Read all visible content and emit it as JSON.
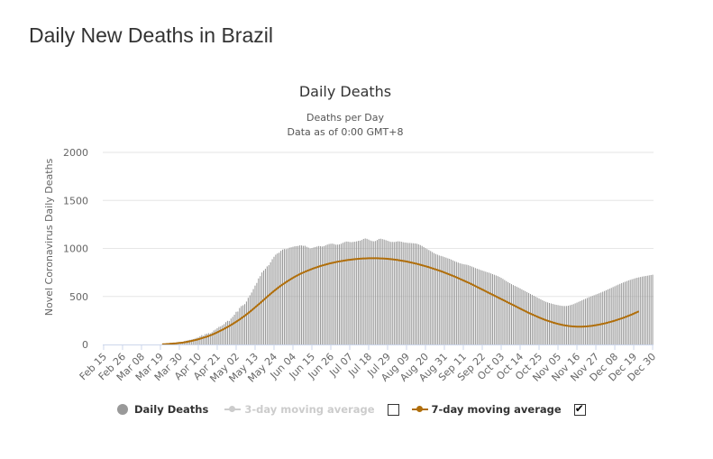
{
  "page": {
    "title": "Daily New Deaths in Brazil"
  },
  "chart_data": {
    "type": "bar",
    "title": "Daily Deaths",
    "subtitle_lines": [
      "Deaths per Day",
      "Data as of 0:00 GMT+8"
    ],
    "ylabel": "Novel Coronavirus Daily Deaths",
    "xlabel": "",
    "ylim": [
      0,
      2000
    ],
    "yticks": [
      0,
      500,
      1000,
      1500,
      2000
    ],
    "date_start": "2020-02-15",
    "date_end": "2020-12-30",
    "x_tick_labels": [
      "Feb 15",
      "Feb 26",
      "Mar 08",
      "Mar 19",
      "Mar 30",
      "Apr 10",
      "Apr 21",
      "May 02",
      "May 13",
      "May 24",
      "Jun 04",
      "Jun 15",
      "Jun 26",
      "Jul 07",
      "Jul 18",
      "Jul 29",
      "Aug 09",
      "Aug 20",
      "Aug 31",
      "Sep 11",
      "Sep 22",
      "Oct 03",
      "Oct 14",
      "Oct 25",
      "Nov 05",
      "Nov 16",
      "Nov 27",
      "Dec 08",
      "Dec 19",
      "Dec 30"
    ],
    "grid": true,
    "legend_position": "bottom",
    "colors": {
      "bars": "#999999",
      "avg3": "#cccccc",
      "avg7": "#b06e0a",
      "grid": "#e6e6e6",
      "axis": "#ccd6eb"
    },
    "series": [
      {
        "name": "Daily Deaths",
        "kind": "bar",
        "visible": true,
        "values": [
          0,
          0,
          0,
          0,
          0,
          0,
          0,
          0,
          0,
          0,
          0,
          0,
          0,
          0,
          0,
          0,
          0,
          0,
          0,
          0,
          0,
          0,
          0,
          0,
          0,
          0,
          0,
          0,
          0,
          0,
          0,
          0,
          0,
          0,
          1,
          2,
          3,
          7,
          7,
          9,
          12,
          11,
          14,
          19,
          21,
          20,
          23,
          36,
          40,
          44,
          48,
          51,
          56,
          61,
          69,
          73,
          85,
          97,
          91,
          108,
          112,
          118,
          116,
          128,
          146,
          155,
          170,
          183,
          188,
          200,
          212,
          232,
          246,
          245,
          270,
          288,
          310,
          340,
          343,
          380,
          400,
          408,
          420,
          447,
          486,
          512,
          541,
          577,
          613,
          641,
          688,
          712,
          750,
          770,
          788,
          813,
          826,
          856,
          888,
          913,
          935,
          948,
          956,
          975,
          988,
          994,
          993,
          998,
          1008,
          1012,
          1017,
          1022,
          1024,
          1026,
          1032,
          1031,
          1027,
          1028,
          1017,
          1009,
          1000,
          1004,
          1010,
          1015,
          1020,
          1025,
          1023,
          1020,
          1024,
          1032,
          1040,
          1046,
          1049,
          1050,
          1045,
          1039,
          1040,
          1042,
          1049,
          1058,
          1066,
          1072,
          1071,
          1067,
          1065,
          1068,
          1070,
          1074,
          1079,
          1081,
          1088,
          1099,
          1104,
          1100,
          1092,
          1083,
          1077,
          1074,
          1078,
          1088,
          1099,
          1101,
          1097,
          1092,
          1086,
          1080,
          1073,
          1068,
          1068,
          1067,
          1071,
          1074,
          1073,
          1070,
          1065,
          1062,
          1060,
          1057,
          1057,
          1055,
          1054,
          1052,
          1049,
          1043,
          1035,
          1026,
          1015,
          1003,
          993,
          983,
          973,
          962,
          951,
          942,
          935,
          927,
          922,
          917,
          910,
          904,
          897,
          892,
          884,
          875,
          867,
          860,
          853,
          846,
          841,
          836,
          833,
          830,
          825,
          818,
          811,
          804,
          796,
          789,
          783,
          776,
          770,
          764,
          758,
          752,
          747,
          740,
          733,
          726,
          719,
          712,
          703,
          694,
          683,
          671,
          660,
          649,
          639,
          628,
          619,
          610,
          602,
          593,
          584,
          574,
          564,
          555,
          545,
          536,
          526,
          517,
          507,
          498,
          488,
          479,
          470,
          461,
          452,
          444,
          438,
          432,
          427,
          422,
          417,
          413,
          410,
          406,
          403,
          401,
          400,
          401,
          404,
          409,
          414,
          420,
          428,
          436,
          444,
          452,
          460,
          468,
          476,
          484,
          492,
          499,
          506,
          513,
          520,
          527,
          534,
          541,
          549,
          557,
          565,
          573,
          581,
          589,
          598,
          606,
          615,
          623,
          631,
          639,
          646,
          653,
          660,
          667,
          673,
          679,
          684,
          690,
          695,
          699,
          703,
          707,
          710,
          713,
          716,
          720,
          723,
          726,
          729
        ]
      },
      {
        "name": "3-day moving average",
        "kind": "line",
        "visible": false,
        "values": []
      },
      {
        "name": "7-day moving average",
        "kind": "line",
        "visible": true,
        "values": [
          0,
          0,
          0,
          0,
          0,
          0,
          0,
          0,
          0,
          0,
          0,
          0,
          0,
          0,
          0,
          0,
          0,
          0,
          0,
          0,
          0,
          0,
          0,
          0,
          0,
          0,
          0,
          0,
          0,
          0,
          0,
          0,
          0,
          0,
          1,
          2,
          3,
          5,
          6,
          8,
          9,
          11,
          12,
          14,
          16,
          18,
          20,
          23,
          26,
          29,
          33,
          37,
          41,
          45,
          49,
          54,
          59,
          65,
          71,
          76,
          82,
          88,
          95,
          102,
          110,
          118,
          126,
          135,
          144,
          153,
          162,
          172,
          182,
          192,
          203,
          214,
          225,
          236,
          248,
          260,
          273,
          286,
          299,
          313,
          327,
          341,
          356,
          371,
          386,
          401,
          417,
          432,
          448,
          464,
          480,
          496,
          512,
          527,
          542,
          557,
          571,
          585,
          599,
          612,
          625,
          637,
          649,
          661,
          672,
          683,
          694,
          704,
          714,
          723,
          732,
          741,
          749,
          757,
          765,
          772,
          779,
          786,
          793,
          799,
          805,
          811,
          817,
          822,
          827,
          832,
          837,
          842,
          846,
          850,
          854,
          858,
          862,
          865,
          868,
          871,
          874,
          877,
          880,
          882,
          884,
          886,
          888,
          890,
          892,
          893,
          894,
          895,
          896,
          897,
          898,
          898,
          898,
          898,
          898,
          898,
          897,
          896,
          895,
          894,
          893,
          892,
          890,
          888,
          886,
          884,
          882,
          879,
          876,
          873,
          870,
          867,
          864,
          860,
          856,
          852,
          848,
          844,
          840,
          835,
          830,
          825,
          820,
          815,
          810,
          805,
          799,
          793,
          787,
          781,
          775,
          769,
          763,
          756,
          749,
          742,
          735,
          728,
          721,
          714,
          707,
          699,
          691,
          683,
          675,
          667,
          659,
          651,
          643,
          635,
          626,
          617,
          608,
          599,
          590,
          581,
          572,
          563,
          554,
          545,
          536,
          527,
          518,
          509,
          500,
          491,
          482,
          473,
          464,
          455,
          446,
          437,
          428,
          419,
          410,
          401,
          392,
          383,
          374,
          365,
          356,
          347,
          338,
          329,
          321,
          313,
          305,
          297,
          289,
          281,
          274,
          267,
          260,
          253,
          247,
          241,
          235,
          229,
          224,
          219,
          214,
          210,
          206,
          202,
          199,
          196,
          193,
          191,
          189,
          188,
          187,
          186,
          186,
          186,
          186,
          187,
          188,
          189,
          191,
          193,
          195,
          198,
          201,
          204,
          207,
          211,
          215,
          219,
          223,
          228,
          233,
          238,
          243,
          248,
          254,
          260,
          266,
          272,
          278,
          285,
          292,
          299,
          306,
          313,
          321,
          329,
          337,
          345
        ]
      }
    ]
  },
  "legend": {
    "daily": "Daily Deaths",
    "avg3": "3-day moving average",
    "avg7": "7-day moving average",
    "avg3_checked": false,
    "avg7_checked": true
  }
}
